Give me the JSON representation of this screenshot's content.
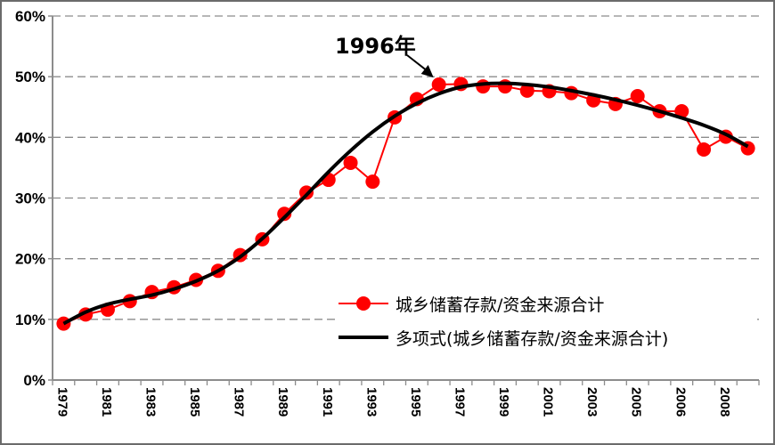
{
  "chart_data": {
    "type": "line",
    "categories": [
      "1979",
      "1980",
      "1981",
      "1982",
      "1983",
      "1984",
      "1985",
      "1986",
      "1987",
      "1988",
      "1989",
      "1990",
      "1991",
      "1992",
      "1993",
      "1994",
      "1995",
      "1996",
      "1997",
      "1998",
      "1999",
      "2000",
      "2001",
      "2002",
      "2003",
      "2004",
      "2005",
      "2005b",
      "2006",
      "2007",
      "2008",
      "2009"
    ],
    "tick_labels": [
      "1979",
      "1981",
      "1983",
      "1985",
      "1987",
      "1989",
      "1991",
      "1993",
      "1995",
      "1997",
      "1999",
      "2001",
      "2003",
      "2005",
      "2006",
      "2008"
    ],
    "series": [
      {
        "name": "城乡储蓄存款/资金来源合计",
        "color": "#ff0000",
        "marker": "circle",
        "values": [
          9.3,
          10.8,
          11.6,
          13.0,
          14.5,
          15.3,
          16.5,
          18.0,
          20.6,
          23.2,
          27.4,
          30.9,
          33.0,
          35.8,
          32.7,
          43.3,
          46.3,
          48.7,
          48.8,
          48.4,
          48.4,
          47.7,
          47.6,
          47.3,
          46.1,
          45.5,
          46.8,
          44.3,
          44.3,
          38.0,
          40.1,
          38.2
        ]
      },
      {
        "name": "多项式(城乡储蓄存款/资金来源合计)",
        "color": "#000000",
        "marker": "none",
        "values": [
          9.3,
          11.2,
          12.5,
          13.3,
          14.0,
          15.0,
          16.3,
          18.0,
          20.3,
          23.3,
          26.8,
          30.5,
          34.3,
          37.8,
          40.9,
          43.5,
          45.6,
          47.2,
          48.3,
          48.8,
          48.9,
          48.7,
          48.3,
          47.7,
          47.0,
          46.2,
          45.3,
          44.3,
          43.2,
          42.0,
          40.5,
          38.5
        ]
      }
    ],
    "y_ticks": [
      "0%",
      "10%",
      "20%",
      "30%",
      "40%",
      "50%",
      "60%"
    ],
    "ylim": [
      0,
      60
    ],
    "ylabel": "",
    "xlabel": "",
    "title": "",
    "grid": "horizontal dashed",
    "legend_position": "bottom-right",
    "annotation": {
      "text": "1996年",
      "points_to": "1996"
    }
  }
}
